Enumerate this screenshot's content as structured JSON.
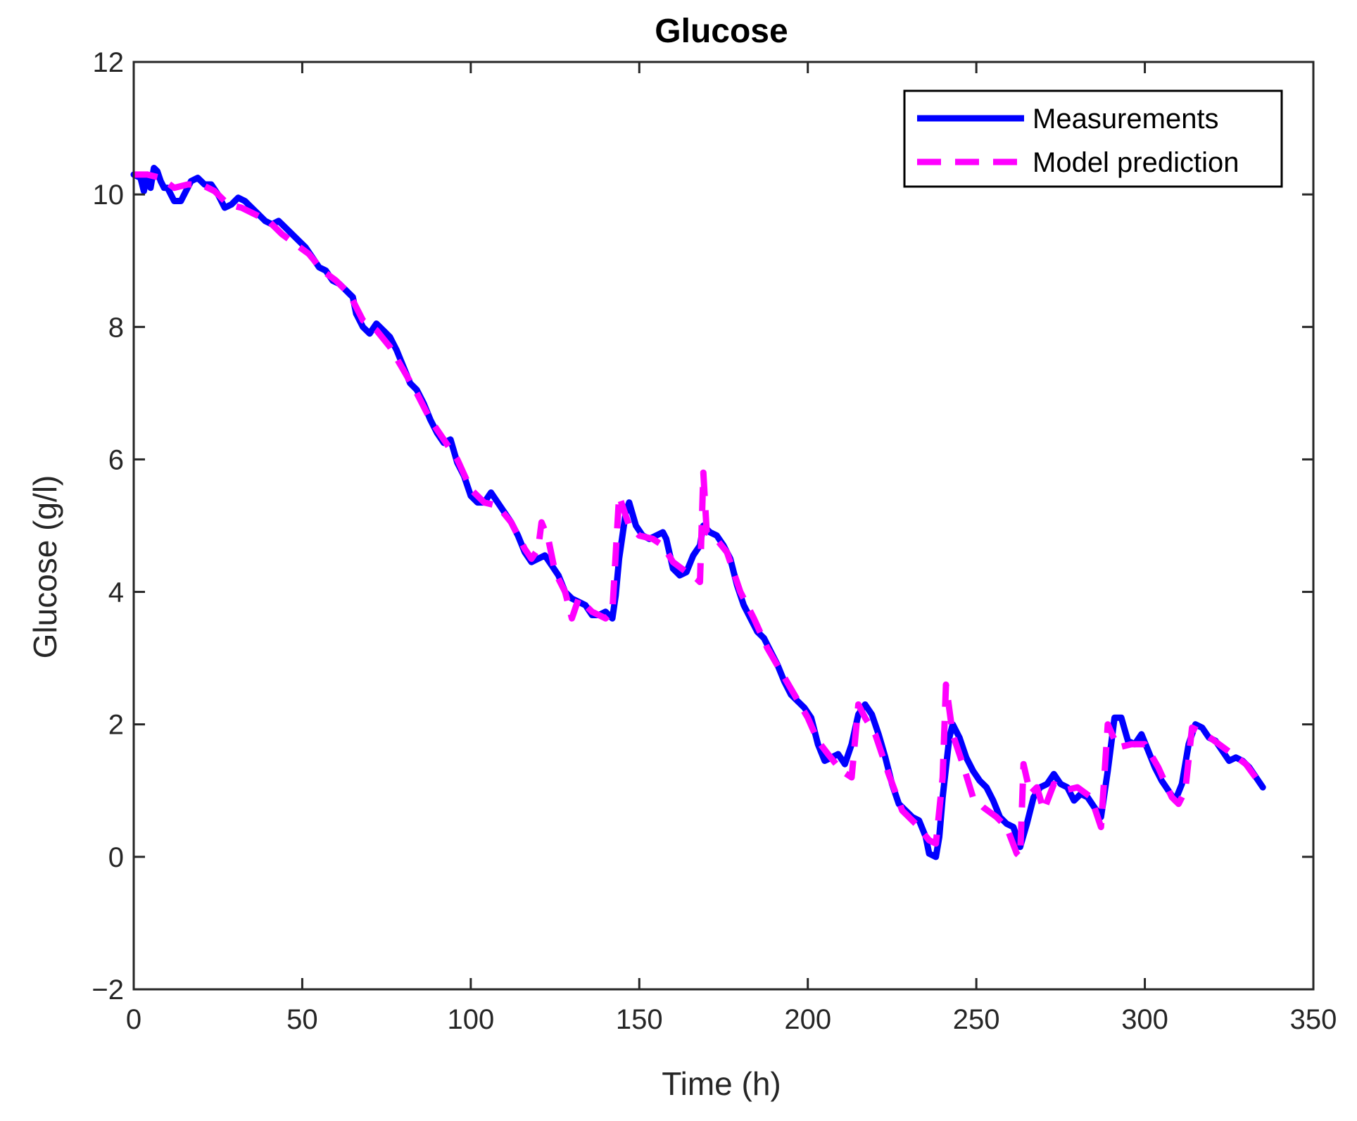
{
  "chart_data": {
    "type": "line",
    "title": "Glucose",
    "xlabel": "Time (h)",
    "ylabel": "Glucose (g/l)",
    "xlim": [
      0,
      350
    ],
    "ylim": [
      -2,
      12
    ],
    "xticks": [
      0,
      50,
      100,
      150,
      200,
      250,
      300,
      350
    ],
    "yticks": [
      -2,
      0,
      2,
      4,
      6,
      8,
      10,
      12
    ],
    "xtick_labels": [
      "0",
      "50",
      "100",
      "150",
      "200",
      "250",
      "300",
      "350"
    ],
    "ytick_labels": [
      "−2",
      "0",
      "2",
      "4",
      "6",
      "8",
      "10",
      "12"
    ],
    "grid": false,
    "legend_position": "top-right",
    "series": [
      {
        "name": "Measurements",
        "color": "#0000ff",
        "style": "solid",
        "points": [
          [
            0,
            10.3
          ],
          [
            2,
            10.25
          ],
          [
            3,
            10.05
          ],
          [
            4,
            10.3
          ],
          [
            5,
            10.1
          ],
          [
            6,
            10.4
          ],
          [
            7,
            10.35
          ],
          [
            8,
            10.2
          ],
          [
            9,
            10.1
          ],
          [
            10,
            10.1
          ],
          [
            12,
            9.9
          ],
          [
            14,
            9.9
          ],
          [
            15,
            10.0
          ],
          [
            17,
            10.2
          ],
          [
            19,
            10.25
          ],
          [
            21,
            10.15
          ],
          [
            23,
            10.15
          ],
          [
            25,
            10.0
          ],
          [
            27,
            9.8
          ],
          [
            29,
            9.85
          ],
          [
            31,
            9.95
          ],
          [
            33,
            9.9
          ],
          [
            35,
            9.8
          ],
          [
            37,
            9.7
          ],
          [
            39,
            9.6
          ],
          [
            41,
            9.55
          ],
          [
            43,
            9.6
          ],
          [
            45,
            9.5
          ],
          [
            47,
            9.4
          ],
          [
            49,
            9.3
          ],
          [
            51,
            9.2
          ],
          [
            53,
            9.05
          ],
          [
            55,
            8.9
          ],
          [
            57,
            8.85
          ],
          [
            59,
            8.7
          ],
          [
            61,
            8.65
          ],
          [
            63,
            8.55
          ],
          [
            65,
            8.45
          ],
          [
            66,
            8.2
          ],
          [
            68,
            8.0
          ],
          [
            70,
            7.9
          ],
          [
            72,
            8.05
          ],
          [
            74,
            7.95
          ],
          [
            76,
            7.85
          ],
          [
            78,
            7.65
          ],
          [
            80,
            7.4
          ],
          [
            82,
            7.15
          ],
          [
            84,
            7.05
          ],
          [
            86,
            6.85
          ],
          [
            88,
            6.6
          ],
          [
            90,
            6.4
          ],
          [
            92,
            6.25
          ],
          [
            94,
            6.3
          ],
          [
            96,
            5.95
          ],
          [
            98,
            5.75
          ],
          [
            100,
            5.45
          ],
          [
            102,
            5.35
          ],
          [
            104,
            5.35
          ],
          [
            106,
            5.5
          ],
          [
            108,
            5.35
          ],
          [
            110,
            5.2
          ],
          [
            112,
            5.05
          ],
          [
            114,
            4.85
          ],
          [
            116,
            4.6
          ],
          [
            118,
            4.45
          ],
          [
            120,
            4.5
          ],
          [
            122,
            4.55
          ],
          [
            124,
            4.4
          ],
          [
            126,
            4.25
          ],
          [
            128,
            4.0
          ],
          [
            130,
            3.9
          ],
          [
            132,
            3.85
          ],
          [
            134,
            3.8
          ],
          [
            136,
            3.65
          ],
          [
            138,
            3.65
          ],
          [
            140,
            3.7
          ],
          [
            142,
            3.6
          ],
          [
            143,
            3.95
          ],
          [
            144,
            4.5
          ],
          [
            146,
            5.2
          ],
          [
            147,
            5.35
          ],
          [
            149,
            5.0
          ],
          [
            151,
            4.85
          ],
          [
            153,
            4.8
          ],
          [
            155,
            4.85
          ],
          [
            157,
            4.9
          ],
          [
            158,
            4.8
          ],
          [
            160,
            4.35
          ],
          [
            162,
            4.25
          ],
          [
            164,
            4.3
          ],
          [
            166,
            4.55
          ],
          [
            168,
            4.7
          ],
          [
            169,
            5.0
          ],
          [
            171,
            4.9
          ],
          [
            173,
            4.85
          ],
          [
            175,
            4.7
          ],
          [
            177,
            4.5
          ],
          [
            179,
            4.1
          ],
          [
            181,
            3.8
          ],
          [
            183,
            3.6
          ],
          [
            185,
            3.4
          ],
          [
            187,
            3.3
          ],
          [
            189,
            3.1
          ],
          [
            191,
            2.9
          ],
          [
            193,
            2.65
          ],
          [
            195,
            2.45
          ],
          [
            197,
            2.35
          ],
          [
            199,
            2.25
          ],
          [
            201,
            2.1
          ],
          [
            203,
            1.7
          ],
          [
            205,
            1.45
          ],
          [
            207,
            1.5
          ],
          [
            209,
            1.55
          ],
          [
            211,
            1.4
          ],
          [
            213,
            1.7
          ],
          [
            215,
            2.15
          ],
          [
            217,
            2.3
          ],
          [
            219,
            2.15
          ],
          [
            221,
            1.85
          ],
          [
            223,
            1.5
          ],
          [
            225,
            1.1
          ],
          [
            227,
            0.8
          ],
          [
            229,
            0.7
          ],
          [
            231,
            0.6
          ],
          [
            233,
            0.55
          ],
          [
            235,
            0.3
          ],
          [
            236,
            0.05
          ],
          [
            238,
            0.0
          ],
          [
            239,
            0.3
          ],
          [
            240,
            0.9
          ],
          [
            242,
            1.8
          ],
          [
            243,
            2.0
          ],
          [
            245,
            1.8
          ],
          [
            247,
            1.5
          ],
          [
            249,
            1.3
          ],
          [
            251,
            1.15
          ],
          [
            253,
            1.05
          ],
          [
            255,
            0.85
          ],
          [
            257,
            0.6
          ],
          [
            259,
            0.5
          ],
          [
            261,
            0.45
          ],
          [
            263,
            0.15
          ],
          [
            265,
            0.5
          ],
          [
            267,
            0.9
          ],
          [
            269,
            1.05
          ],
          [
            271,
            1.1
          ],
          [
            273,
            1.25
          ],
          [
            275,
            1.1
          ],
          [
            277,
            1.05
          ],
          [
            279,
            0.85
          ],
          [
            281,
            0.95
          ],
          [
            283,
            0.9
          ],
          [
            285,
            0.75
          ],
          [
            287,
            0.6
          ],
          [
            289,
            1.3
          ],
          [
            291,
            2.1
          ],
          [
            293,
            2.1
          ],
          [
            295,
            1.75
          ],
          [
            297,
            1.7
          ],
          [
            299,
            1.85
          ],
          [
            301,
            1.6
          ],
          [
            303,
            1.35
          ],
          [
            305,
            1.15
          ],
          [
            307,
            1.0
          ],
          [
            309,
            0.85
          ],
          [
            311,
            1.1
          ],
          [
            313,
            1.7
          ],
          [
            315,
            2.0
          ],
          [
            317,
            1.95
          ],
          [
            319,
            1.8
          ],
          [
            321,
            1.75
          ],
          [
            323,
            1.6
          ],
          [
            325,
            1.45
          ],
          [
            327,
            1.5
          ],
          [
            329,
            1.45
          ],
          [
            331,
            1.35
          ],
          [
            333,
            1.2
          ],
          [
            335,
            1.05
          ]
        ]
      },
      {
        "name": "Model prediction",
        "color": "#ff00ff",
        "style": "dashed",
        "points": [
          [
            0,
            10.3
          ],
          [
            4,
            10.3
          ],
          [
            8,
            10.25
          ],
          [
            12,
            10.1
          ],
          [
            16,
            10.15
          ],
          [
            20,
            10.15
          ],
          [
            24,
            10.05
          ],
          [
            28,
            9.85
          ],
          [
            32,
            9.8
          ],
          [
            36,
            9.7
          ],
          [
            40,
            9.6
          ],
          [
            44,
            9.4
          ],
          [
            48,
            9.25
          ],
          [
            52,
            9.1
          ],
          [
            56,
            8.85
          ],
          [
            60,
            8.7
          ],
          [
            64,
            8.5
          ],
          [
            66,
            8.3
          ],
          [
            68,
            8.1
          ],
          [
            72,
            7.95
          ],
          [
            76,
            7.7
          ],
          [
            80,
            7.35
          ],
          [
            84,
            7.0
          ],
          [
            88,
            6.6
          ],
          [
            92,
            6.3
          ],
          [
            96,
            6.0
          ],
          [
            100,
            5.55
          ],
          [
            104,
            5.35
          ],
          [
            108,
            5.3
          ],
          [
            112,
            5.05
          ],
          [
            116,
            4.65
          ],
          [
            118,
            4.5
          ],
          [
            120,
            4.65
          ],
          [
            121,
            5.05
          ],
          [
            123,
            4.8
          ],
          [
            125,
            4.3
          ],
          [
            128,
            4.0
          ],
          [
            130,
            3.6
          ],
          [
            132,
            3.9
          ],
          [
            136,
            3.7
          ],
          [
            140,
            3.6
          ],
          [
            142,
            3.7
          ],
          [
            144,
            5.45
          ],
          [
            145,
            5.3
          ],
          [
            147,
            5.0
          ],
          [
            150,
            4.85
          ],
          [
            154,
            4.8
          ],
          [
            157,
            4.7
          ],
          [
            160,
            4.45
          ],
          [
            164,
            4.3
          ],
          [
            167,
            4.2
          ],
          [
            168,
            4.15
          ],
          [
            169,
            5.8
          ],
          [
            170,
            4.9
          ],
          [
            172,
            4.85
          ],
          [
            176,
            4.6
          ],
          [
            180,
            4.0
          ],
          [
            184,
            3.6
          ],
          [
            188,
            3.15
          ],
          [
            192,
            2.8
          ],
          [
            196,
            2.45
          ],
          [
            200,
            2.1
          ],
          [
            203,
            1.75
          ],
          [
            206,
            1.55
          ],
          [
            210,
            1.3
          ],
          [
            213,
            1.2
          ],
          [
            215,
            2.3
          ],
          [
            217,
            2.1
          ],
          [
            220,
            1.85
          ],
          [
            224,
            1.25
          ],
          [
            228,
            0.7
          ],
          [
            232,
            0.5
          ],
          [
            236,
            0.25
          ],
          [
            238,
            0.2
          ],
          [
            240,
            1.2
          ],
          [
            241,
            2.6
          ],
          [
            243,
            1.85
          ],
          [
            246,
            1.4
          ],
          [
            249,
            0.9
          ],
          [
            252,
            0.75
          ],
          [
            256,
            0.6
          ],
          [
            259,
            0.45
          ],
          [
            262,
            0.05
          ],
          [
            263,
            0.0
          ],
          [
            264,
            1.4
          ],
          [
            266,
            0.95
          ],
          [
            268,
            1.05
          ],
          [
            270,
            0.7
          ],
          [
            273,
            1.1
          ],
          [
            276,
            1.0
          ],
          [
            280,
            1.05
          ],
          [
            284,
            0.9
          ],
          [
            287,
            0.45
          ],
          [
            289,
            2.0
          ],
          [
            292,
            1.65
          ],
          [
            296,
            1.7
          ],
          [
            300,
            1.7
          ],
          [
            304,
            1.35
          ],
          [
            308,
            0.9
          ],
          [
            310,
            0.8
          ],
          [
            312,
            1.0
          ],
          [
            314,
            1.95
          ],
          [
            318,
            1.85
          ],
          [
            322,
            1.7
          ],
          [
            326,
            1.55
          ],
          [
            330,
            1.4
          ],
          [
            335,
            1.05
          ]
        ]
      }
    ]
  }
}
